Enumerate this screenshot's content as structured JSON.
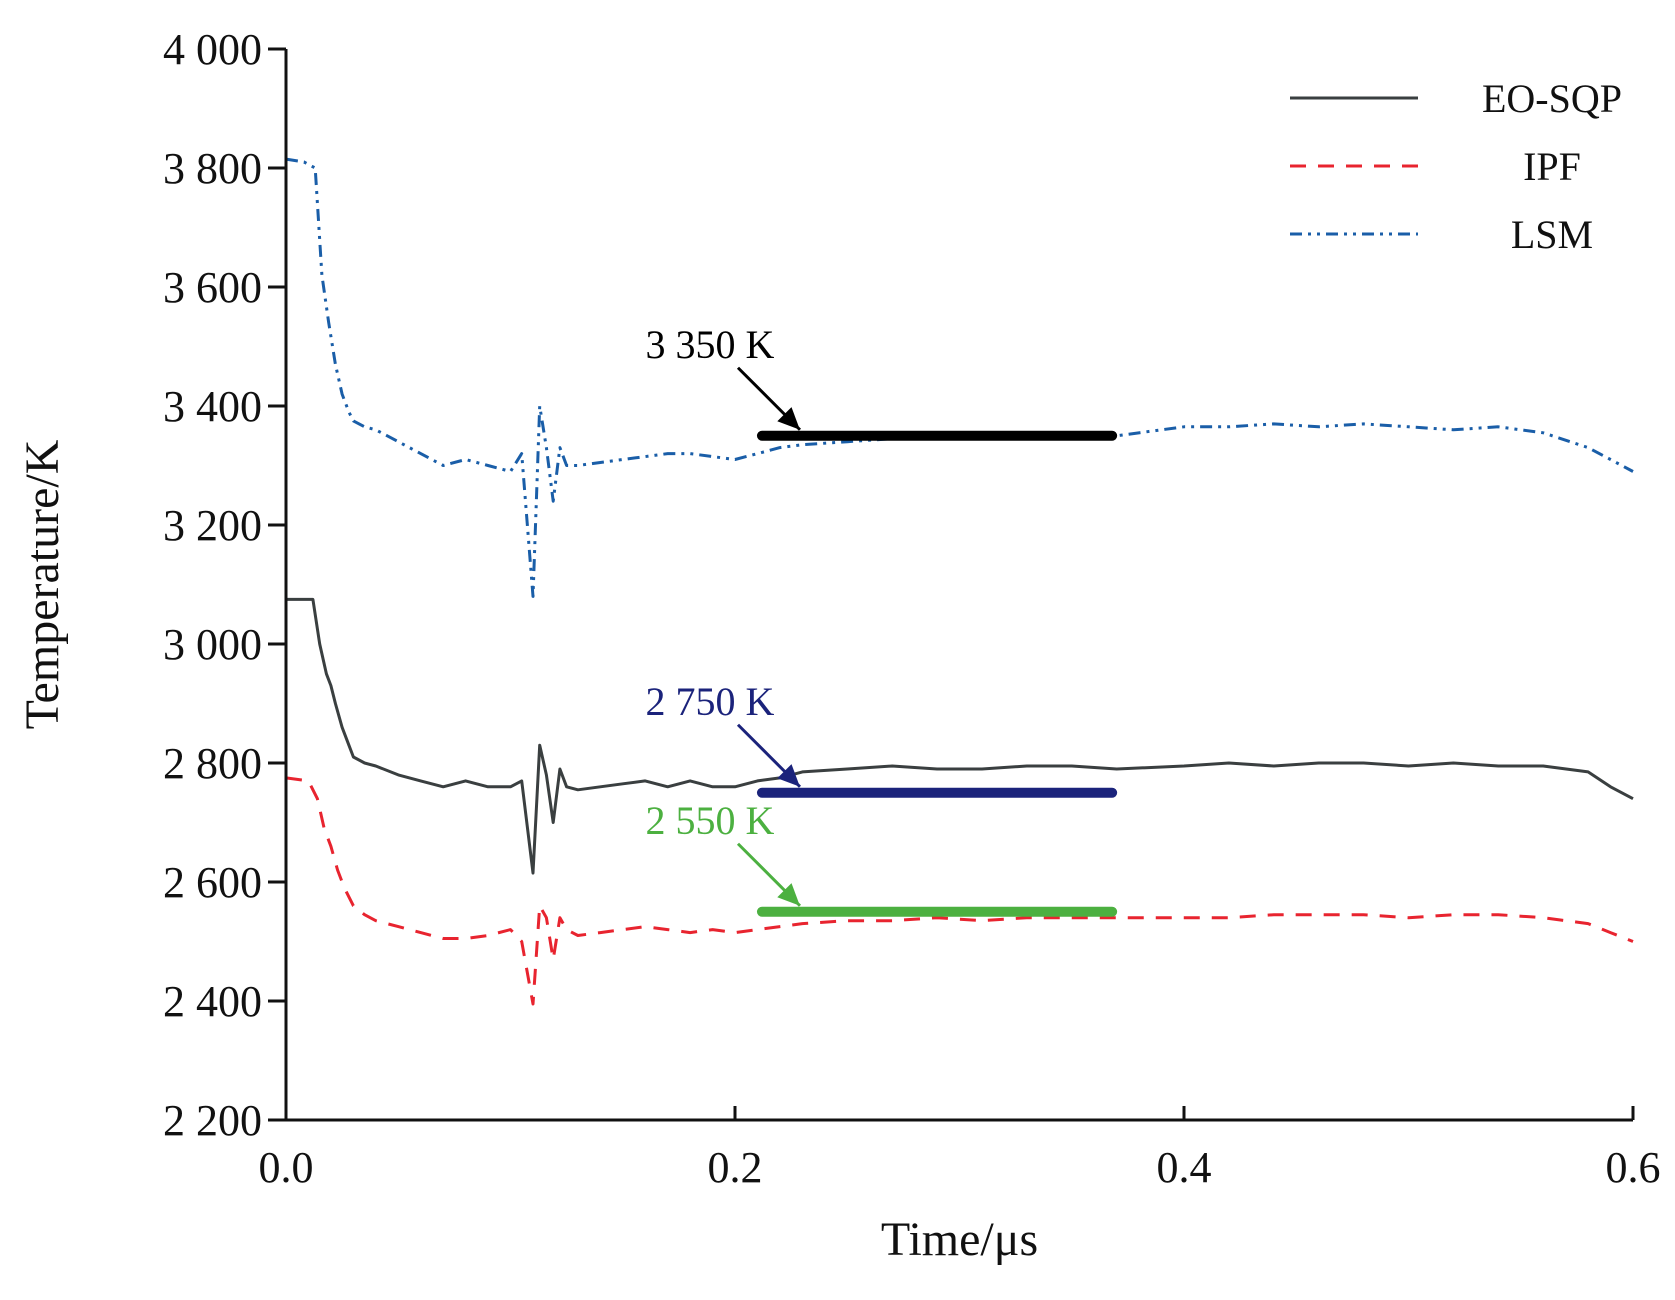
{
  "chart_data": {
    "type": "line",
    "xlabel": "Time/μs",
    "ylabel": "Temperature/K",
    "xlim": [
      0.0,
      0.6
    ],
    "ylim": [
      2200,
      4000
    ],
    "x_ticks": [
      0.0,
      0.2,
      0.4,
      0.6
    ],
    "x_tick_labels": [
      "0.0",
      "0.2",
      "0.4",
      "0.6"
    ],
    "y_ticks": [
      2200,
      2400,
      2600,
      2800,
      3000,
      3200,
      3400,
      3600,
      3800,
      4000
    ],
    "y_tick_labels": [
      "2 200",
      "2 400",
      "2 600",
      "2 800",
      "3 000",
      "3 200",
      "3 400",
      "3 600",
      "3 800",
      "4 000"
    ],
    "grid": false,
    "legend_position": "top-right",
    "series": [
      {
        "name": "EO-SQP",
        "color": "#3a3f40",
        "style": "solid",
        "x": [
          0.0,
          0.012,
          0.015,
          0.018,
          0.02,
          0.022,
          0.025,
          0.028,
          0.03,
          0.035,
          0.04,
          0.05,
          0.06,
          0.07,
          0.08,
          0.09,
          0.1,
          0.105,
          0.11,
          0.113,
          0.116,
          0.119,
          0.122,
          0.125,
          0.13,
          0.14,
          0.15,
          0.16,
          0.17,
          0.18,
          0.19,
          0.2,
          0.21,
          0.22,
          0.23,
          0.25,
          0.27,
          0.29,
          0.31,
          0.33,
          0.35,
          0.37,
          0.4,
          0.42,
          0.44,
          0.46,
          0.48,
          0.5,
          0.52,
          0.54,
          0.56,
          0.58,
          0.59,
          0.6
        ],
        "y": [
          3075,
          3075,
          3000,
          2950,
          2930,
          2900,
          2860,
          2830,
          2810,
          2800,
          2795,
          2780,
          2770,
          2760,
          2770,
          2760,
          2760,
          2770,
          2615,
          2830,
          2780,
          2700,
          2790,
          2760,
          2755,
          2760,
          2765,
          2770,
          2760,
          2770,
          2760,
          2760,
          2770,
          2775,
          2785,
          2790,
          2795,
          2790,
          2790,
          2795,
          2795,
          2790,
          2795,
          2800,
          2795,
          2800,
          2800,
          2795,
          2800,
          2795,
          2795,
          2785,
          2760,
          2740
        ]
      },
      {
        "name": "IPF",
        "color": "#e8242f",
        "style": "dashed",
        "x": [
          0.0,
          0.01,
          0.014,
          0.017,
          0.02,
          0.023,
          0.026,
          0.03,
          0.035,
          0.04,
          0.05,
          0.06,
          0.07,
          0.08,
          0.09,
          0.1,
          0.105,
          0.11,
          0.113,
          0.116,
          0.119,
          0.122,
          0.125,
          0.13,
          0.14,
          0.15,
          0.16,
          0.17,
          0.18,
          0.19,
          0.2,
          0.21,
          0.22,
          0.23,
          0.25,
          0.27,
          0.29,
          0.31,
          0.33,
          0.35,
          0.37,
          0.4,
          0.42,
          0.44,
          0.46,
          0.48,
          0.5,
          0.52,
          0.54,
          0.56,
          0.58,
          0.59,
          0.6
        ],
        "y": [
          2775,
          2770,
          2740,
          2690,
          2660,
          2620,
          2590,
          2560,
          2545,
          2535,
          2525,
          2515,
          2505,
          2505,
          2510,
          2520,
          2500,
          2395,
          2560,
          2540,
          2470,
          2540,
          2520,
          2510,
          2515,
          2520,
          2525,
          2520,
          2515,
          2520,
          2515,
          2520,
          2525,
          2530,
          2535,
          2535,
          2540,
          2535,
          2540,
          2540,
          2540,
          2540,
          2540,
          2545,
          2545,
          2545,
          2540,
          2545,
          2545,
          2540,
          2530,
          2515,
          2500
        ]
      },
      {
        "name": "LSM",
        "color": "#1a5ea8",
        "style": "dash-dot-dot",
        "x": [
          0.0,
          0.008,
          0.013,
          0.016,
          0.019,
          0.022,
          0.025,
          0.028,
          0.03,
          0.035,
          0.04,
          0.05,
          0.06,
          0.07,
          0.08,
          0.09,
          0.1,
          0.105,
          0.11,
          0.113,
          0.116,
          0.119,
          0.122,
          0.125,
          0.13,
          0.14,
          0.15,
          0.16,
          0.17,
          0.18,
          0.19,
          0.2,
          0.21,
          0.22,
          0.23,
          0.25,
          0.27,
          0.29,
          0.31,
          0.33,
          0.35,
          0.37,
          0.4,
          0.42,
          0.44,
          0.46,
          0.48,
          0.5,
          0.52,
          0.54,
          0.56,
          0.58,
          0.59,
          0.6
        ],
        "y": [
          3815,
          3810,
          3800,
          3620,
          3540,
          3470,
          3420,
          3390,
          3375,
          3365,
          3360,
          3340,
          3320,
          3300,
          3310,
          3300,
          3290,
          3320,
          3080,
          3400,
          3330,
          3240,
          3330,
          3300,
          3300,
          3305,
          3310,
          3315,
          3320,
          3320,
          3315,
          3310,
          3320,
          3330,
          3335,
          3340,
          3345,
          3350,
          3345,
          3350,
          3350,
          3350,
          3365,
          3365,
          3370,
          3365,
          3370,
          3365,
          3360,
          3365,
          3355,
          3330,
          3310,
          3290
        ]
      }
    ],
    "reference_lines": [
      {
        "label": "3 350 K",
        "value": 3350,
        "x_start": 0.212,
        "x_end": 0.368,
        "color": "#000000",
        "label_color": "#000000"
      },
      {
        "label": "2 750 K",
        "value": 2750,
        "x_start": 0.212,
        "x_end": 0.368,
        "color": "#1b237b",
        "label_color": "#1b237b"
      },
      {
        "label": "2 550 K",
        "value": 2550,
        "x_start": 0.212,
        "x_end": 0.368,
        "color": "#4cb040",
        "label_color": "#4cb040"
      }
    ]
  }
}
